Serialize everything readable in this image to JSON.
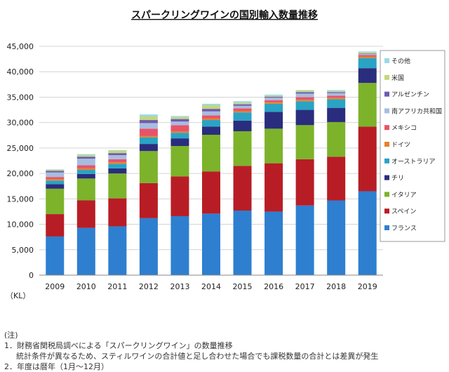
{
  "chart_data": {
    "type": "bar",
    "stacked": true,
    "title": "スパークリングワインの国別輸入数量推移",
    "unit_label": "（KL）",
    "categories": [
      "2009",
      "2010",
      "2011",
      "2012",
      "2013",
      "2014",
      "2015",
      "2016",
      "2017",
      "2018",
      "2019"
    ],
    "ylim": [
      0,
      45000
    ],
    "yticks": [
      "0",
      "5,000",
      "10,000",
      "15,000",
      "20,000",
      "25,000",
      "30,000",
      "35,000",
      "40,000",
      "45,000"
    ],
    "ytick_values": [
      0,
      5000,
      10000,
      15000,
      20000,
      25000,
      30000,
      35000,
      40000,
      45000
    ],
    "grid": true,
    "legend_position": "right",
    "series": [
      {
        "name": "フランス",
        "color": "#2e7fd0",
        "values": [
          7600,
          9300,
          9600,
          11200,
          11600,
          12100,
          12700,
          12500,
          13700,
          14700,
          16500
        ]
      },
      {
        "name": "スペイン",
        "color": "#b81d25",
        "values": [
          4400,
          5400,
          5500,
          6900,
          7800,
          8300,
          8800,
          9500,
          9100,
          8600,
          12700
        ]
      },
      {
        "name": "イタリア",
        "color": "#7cb32b",
        "values": [
          5000,
          4300,
          4900,
          6300,
          6000,
          7200,
          6800,
          6800,
          6700,
          6800,
          8600
        ]
      },
      {
        "name": "チリ",
        "color": "#2a2d7d",
        "values": [
          900,
          900,
          1000,
          1400,
          1500,
          1600,
          2100,
          3300,
          3000,
          2800,
          2900
        ]
      },
      {
        "name": "オーストラリア",
        "color": "#2aa3c4",
        "values": [
          700,
          800,
          900,
          1300,
          1100,
          1300,
          1600,
          1600,
          1700,
          1700,
          2000
        ]
      },
      {
        "name": "ドイツ",
        "color": "#e3842a",
        "values": [
          300,
          300,
          300,
          300,
          300,
          300,
          300,
          300,
          300,
          300,
          300
        ]
      },
      {
        "name": "メキシコ",
        "color": "#e8536a",
        "values": [
          400,
          600,
          600,
          1400,
          1200,
          600,
          500,
          400,
          500,
          400,
          300
        ]
      },
      {
        "name": "南アフリカ共和国",
        "color": "#a7bde0",
        "values": [
          900,
          1300,
          800,
          1100,
          700,
          800,
          500,
          500,
          700,
          500,
          200
        ]
      },
      {
        "name": "アルゼンチン",
        "color": "#6f5bb0",
        "values": [
          300,
          400,
          400,
          600,
          500,
          500,
          300,
          200,
          300,
          200,
          100
        ]
      },
      {
        "name": "米国",
        "color": "#c3d77a",
        "values": [
          200,
          300,
          500,
          700,
          400,
          700,
          300,
          200,
          300,
          200,
          200
        ]
      },
      {
        "name": "その他",
        "color": "#9ad9e8",
        "values": [
          100,
          200,
          100,
          400,
          200,
          300,
          300,
          200,
          100,
          200,
          200
        ]
      }
    ]
  },
  "notes": {
    "heading": "(注)",
    "line1": "1．財務省関税局調べによる「スパークリングワイン」の数量推移",
    "line2": "統計条件が異なるため、スティルワインの合計値と足し合わせた場合でも課税数量の合計とは差異が発生",
    "line3": "2．年度は暦年（1月～12月）"
  }
}
